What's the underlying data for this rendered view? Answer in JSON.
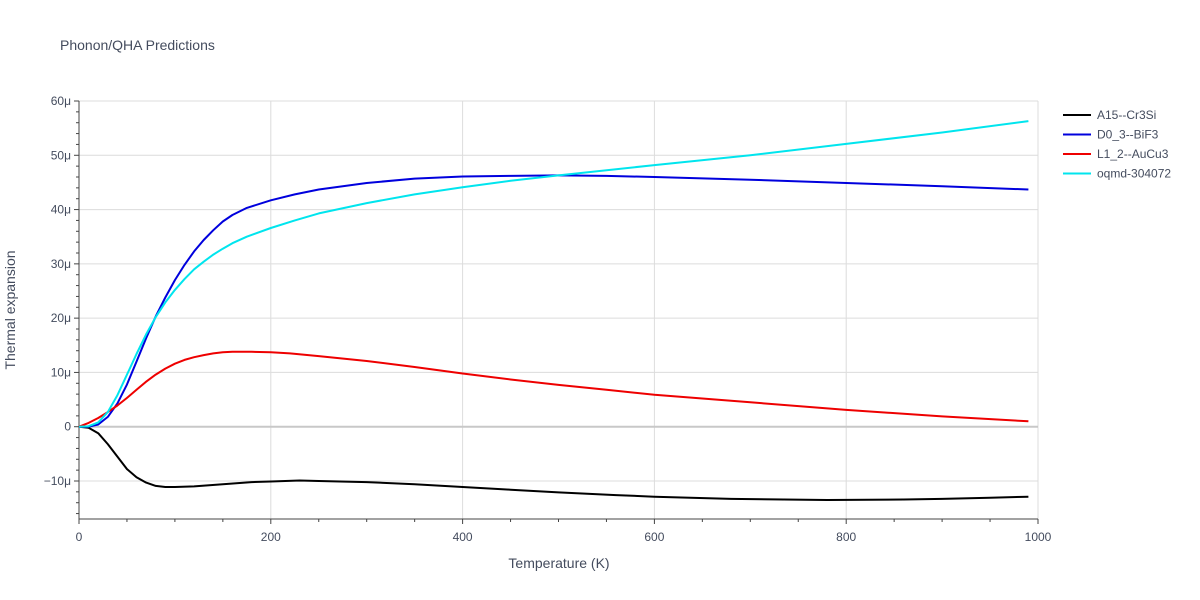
{
  "chart_data": {
    "type": "line",
    "title": "Phonon/QHA Predictions",
    "xlabel": "Temperature (K)",
    "ylabel": "Thermal expansion",
    "xlim": [
      0,
      1000
    ],
    "ylim": [
      -17,
      60
    ],
    "y_unit_suffix": "μ",
    "x_ticks": [
      0,
      200,
      400,
      600,
      800,
      1000
    ],
    "y_ticks": [
      -10,
      0,
      10,
      20,
      30,
      40,
      50,
      60
    ],
    "grid": true,
    "legend_position": "top-right",
    "series": [
      {
        "name": "A15--Cr3Si",
        "color": "#000000",
        "points": [
          [
            0,
            0
          ],
          [
            10,
            -0.2
          ],
          [
            20,
            -1.2
          ],
          [
            30,
            -3.2
          ],
          [
            40,
            -5.5
          ],
          [
            50,
            -7.8
          ],
          [
            60,
            -9.3
          ],
          [
            70,
            -10.3
          ],
          [
            80,
            -10.9
          ],
          [
            90,
            -11.1
          ],
          [
            100,
            -11.1
          ],
          [
            120,
            -11.0
          ],
          [
            150,
            -10.6
          ],
          [
            180,
            -10.2
          ],
          [
            200,
            -10.1
          ],
          [
            230,
            -9.9
          ],
          [
            250,
            -10.0
          ],
          [
            300,
            -10.2
          ],
          [
            350,
            -10.6
          ],
          [
            400,
            -11.1
          ],
          [
            450,
            -11.6
          ],
          [
            500,
            -12.1
          ],
          [
            560,
            -12.6
          ],
          [
            600,
            -12.9
          ],
          [
            680,
            -13.3
          ],
          [
            780,
            -13.5
          ],
          [
            860,
            -13.4
          ],
          [
            900,
            -13.3
          ],
          [
            950,
            -13.1
          ],
          [
            990,
            -12.9
          ]
        ]
      },
      {
        "name": "D0_3--BiF3",
        "color": "#0000dd",
        "points": [
          [
            0,
            0
          ],
          [
            10,
            0
          ],
          [
            20,
            0.4
          ],
          [
            30,
            1.8
          ],
          [
            40,
            4.3
          ],
          [
            50,
            7.8
          ],
          [
            60,
            12.0
          ],
          [
            70,
            16.3
          ],
          [
            80,
            20.3
          ],
          [
            90,
            23.8
          ],
          [
            100,
            27.0
          ],
          [
            110,
            29.8
          ],
          [
            120,
            32.3
          ],
          [
            130,
            34.4
          ],
          [
            140,
            36.2
          ],
          [
            150,
            37.8
          ],
          [
            160,
            39.0
          ],
          [
            175,
            40.3
          ],
          [
            200,
            41.7
          ],
          [
            225,
            42.8
          ],
          [
            250,
            43.7
          ],
          [
            300,
            44.9
          ],
          [
            350,
            45.7
          ],
          [
            400,
            46.1
          ],
          [
            450,
            46.2
          ],
          [
            500,
            46.3
          ],
          [
            550,
            46.2
          ],
          [
            600,
            46.0
          ],
          [
            700,
            45.5
          ],
          [
            800,
            44.9
          ],
          [
            900,
            44.3
          ],
          [
            990,
            43.7
          ]
        ]
      },
      {
        "name": "L1_2--AuCu3",
        "color": "#ee0000",
        "points": [
          [
            0,
            0
          ],
          [
            10,
            0.7
          ],
          [
            20,
            1.6
          ],
          [
            30,
            2.7
          ],
          [
            40,
            3.9
          ],
          [
            50,
            5.3
          ],
          [
            60,
            6.8
          ],
          [
            70,
            8.3
          ],
          [
            80,
            9.6
          ],
          [
            90,
            10.7
          ],
          [
            100,
            11.6
          ],
          [
            110,
            12.3
          ],
          [
            120,
            12.8
          ],
          [
            130,
            13.2
          ],
          [
            140,
            13.5
          ],
          [
            150,
            13.7
          ],
          [
            160,
            13.8
          ],
          [
            180,
            13.8
          ],
          [
            200,
            13.7
          ],
          [
            220,
            13.5
          ],
          [
            250,
            13.0
          ],
          [
            300,
            12.1
          ],
          [
            350,
            11.0
          ],
          [
            400,
            9.8
          ],
          [
            450,
            8.7
          ],
          [
            500,
            7.7
          ],
          [
            550,
            6.8
          ],
          [
            600,
            5.9
          ],
          [
            700,
            4.5
          ],
          [
            800,
            3.1
          ],
          [
            900,
            1.9
          ],
          [
            990,
            1.0
          ]
        ]
      },
      {
        "name": "oqmd-304072",
        "color": "#00e5ee",
        "points": [
          [
            0,
            0
          ],
          [
            10,
            0.1
          ],
          [
            20,
            0.8
          ],
          [
            30,
            2.7
          ],
          [
            40,
            5.8
          ],
          [
            50,
            9.6
          ],
          [
            60,
            13.4
          ],
          [
            70,
            17.0
          ],
          [
            80,
            20.2
          ],
          [
            90,
            22.9
          ],
          [
            100,
            25.2
          ],
          [
            110,
            27.2
          ],
          [
            120,
            29.0
          ],
          [
            130,
            30.4
          ],
          [
            140,
            31.7
          ],
          [
            150,
            32.8
          ],
          [
            160,
            33.8
          ],
          [
            175,
            35.0
          ],
          [
            200,
            36.6
          ],
          [
            225,
            38.0
          ],
          [
            250,
            39.3
          ],
          [
            300,
            41.2
          ],
          [
            350,
            42.8
          ],
          [
            400,
            44.1
          ],
          [
            450,
            45.3
          ],
          [
            500,
            46.3
          ],
          [
            600,
            48.2
          ],
          [
            700,
            50.0
          ],
          [
            800,
            52.1
          ],
          [
            900,
            54.2
          ],
          [
            990,
            56.3
          ]
        ]
      }
    ]
  }
}
